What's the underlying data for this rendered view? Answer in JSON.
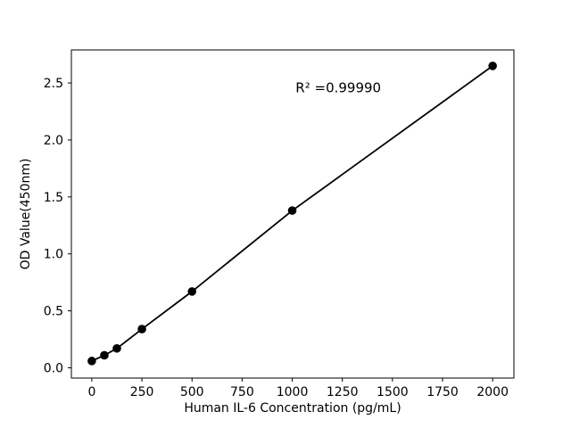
{
  "chart_data": {
    "type": "line",
    "title": "",
    "xlabel": "Human IL-6 Concentration (pg/mL)",
    "ylabel": "OD Value(450nm)",
    "x": [
      0,
      62.5,
      125,
      250,
      500,
      1000,
      2000
    ],
    "y": [
      0.06,
      0.11,
      0.17,
      0.34,
      0.67,
      1.38,
      2.65
    ],
    "annotation": {
      "text": "R² =0.99990",
      "x": 1230,
      "y": 2.42
    },
    "xticks": [
      0,
      250,
      500,
      750,
      1000,
      1250,
      1500,
      1750,
      2000
    ],
    "xtick_labels": [
      "0",
      "250",
      "500",
      "750",
      "1000",
      "1250",
      "1500",
      "1750",
      "2000"
    ],
    "yticks": [
      0.0,
      0.5,
      1.0,
      1.5,
      2.0,
      2.5
    ],
    "ytick_labels": [
      "0.0",
      "0.5",
      "1.0",
      "1.5",
      "2.0",
      "2.5"
    ],
    "xlim": [
      -102,
      2106
    ],
    "ylim": [
      -0.09,
      2.79
    ],
    "grid": false,
    "legend": null,
    "line_color": "#000000",
    "marker_color": "#000000",
    "axis_color": "#000000",
    "background": "#ffffff"
  }
}
